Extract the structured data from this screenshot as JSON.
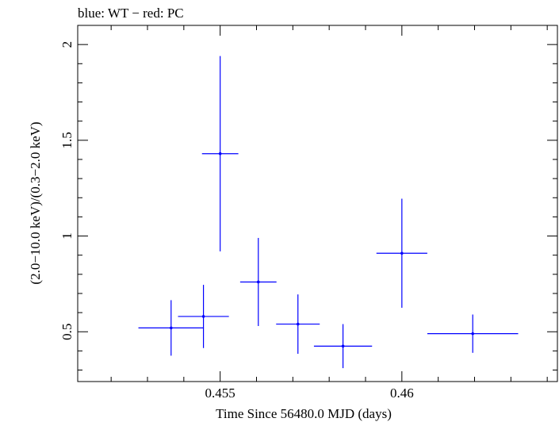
{
  "chart_data": {
    "type": "scatter",
    "title": "blue: WT − red: PC",
    "xlabel": "Time Since 56480.0 MJD (days)",
    "ylabel": "(2.0−10.0 keV)/(0.3−2.0 keV)",
    "xlim": [
      0.45108,
      0.46428
    ],
    "ylim": [
      0.24,
      2.1
    ],
    "x_ticks": [
      {
        "value": 0.455,
        "label": "0.455"
      },
      {
        "value": 0.46,
        "label": "0.46"
      }
    ],
    "y_ticks": [
      {
        "value": 0.5,
        "label": "0.5"
      },
      {
        "value": 1,
        "label": "1"
      },
      {
        "value": 1.5,
        "label": "1.5"
      },
      {
        "value": 2,
        "label": "2"
      }
    ],
    "series": [
      {
        "name": "WT",
        "color": "#0000ff",
        "points": [
          {
            "x": 0.45365,
            "xerr": 0.0009,
            "y": 0.52,
            "yerr": 0.145
          },
          {
            "x": 0.45454,
            "xerr": 0.0007,
            "y": 0.58,
            "yerr": 0.165
          },
          {
            "x": 0.455,
            "xerr": 0.0005,
            "y": 1.43,
            "yerr": 0.51
          },
          {
            "x": 0.45605,
            "xerr": 0.0005,
            "y": 0.76,
            "yerr": 0.23
          },
          {
            "x": 0.45714,
            "xerr": 0.0006,
            "y": 0.54,
            "yerr": 0.155
          },
          {
            "x": 0.45838,
            "xerr": 0.0008,
            "y": 0.425,
            "yerr": 0.115
          },
          {
            "x": 0.46,
            "xerr": 0.0007,
            "y": 0.91,
            "yerr": 0.285
          },
          {
            "x": 0.46195,
            "xerr": 0.00125,
            "y": 0.49,
            "yerr": 0.1
          }
        ]
      }
    ]
  }
}
